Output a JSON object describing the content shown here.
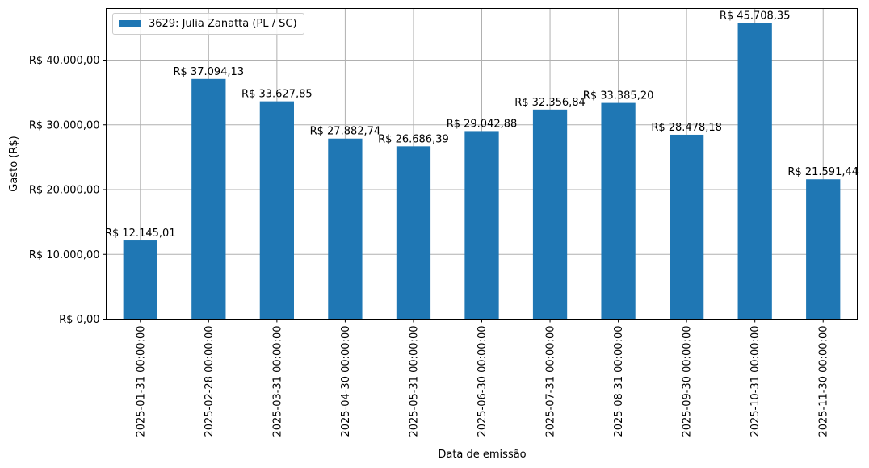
{
  "chart_data": {
    "type": "bar",
    "title": "",
    "xlabel": "Data de emissão",
    "ylabel": "Gasto (R$)",
    "ylim": [
      0,
      48000
    ],
    "grid": true,
    "legend_position": "upper left",
    "bar_color": "#1f77b4",
    "categories": [
      "2025-01-31 00:00:00",
      "2025-02-28 00:00:00",
      "2025-03-31 00:00:00",
      "2025-04-30 00:00:00",
      "2025-05-31 00:00:00",
      "2025-06-30 00:00:00",
      "2025-07-31 00:00:00",
      "2025-08-31 00:00:00",
      "2025-09-30 00:00:00",
      "2025-10-31 00:00:00",
      "2025-11-30 00:00:00"
    ],
    "series": [
      {
        "name": "3629: Julia Zanatta (PL / SC)",
        "values": [
          12145.01,
          37094.13,
          33627.85,
          27882.74,
          26686.39,
          29042.88,
          32356.84,
          33385.2,
          28478.18,
          45708.35,
          21591.44
        ],
        "labels": [
          "R$ 12.145,01",
          "R$ 37.094,13",
          "R$ 33.627,85",
          "R$ 27.882,74",
          "R$ 26.686,39",
          "R$ 29.042,88",
          "R$ 32.356,84",
          "R$ 33.385,20",
          "R$ 28.478,18",
          "R$ 45.708,35",
          "R$ 21.591,44"
        ]
      }
    ],
    "yticks": [
      0,
      10000,
      20000,
      30000,
      40000
    ],
    "ytick_labels": [
      "R$ 0,00",
      "R$ 10.000,00",
      "R$ 20.000,00",
      "R$ 30.000,00",
      "R$ 40.000,00"
    ]
  },
  "legend": {
    "label": "3629: Julia Zanatta (PL / SC)"
  }
}
